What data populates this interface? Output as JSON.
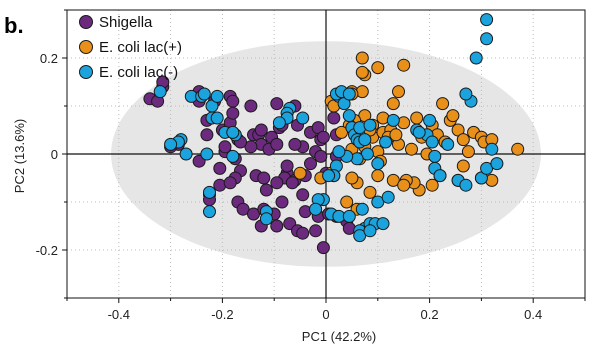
{
  "chart_data": {
    "type": "scatter",
    "panel_label": "b.",
    "title": "",
    "xlabel": "PC1 (42.2%)",
    "ylabel": "PC2 (13.6%)",
    "xlim": [
      -0.5,
      0.5
    ],
    "ylim": [
      -0.3,
      0.3
    ],
    "x_ticks": [
      -0.4,
      -0.2,
      0,
      0.2,
      0.4
    ],
    "x_tick_labels": [
      "-0.4",
      "-0.2",
      "0",
      "0.2",
      "0.4"
    ],
    "y_ticks": [
      0.2,
      0,
      -0.2
    ],
    "y_tick_labels": [
      "0.2",
      "0",
      "-0.2"
    ],
    "grid": true,
    "legend_position": "top-left",
    "ellipse": {
      "cx": 0.0,
      "cy": 0.0,
      "rx": 0.415,
      "ry": 0.235,
      "color": "#e6e6e6"
    },
    "series": [
      {
        "name": "Shigella",
        "color": "#6b2a7e",
        "points": [
          [
            -0.34,
            0.115
          ],
          [
            -0.325,
            0.11
          ],
          [
            -0.315,
            0.14
          ],
          [
            -0.315,
            0.15
          ],
          [
            -0.245,
            0.11
          ],
          [
            -0.245,
            0.13
          ],
          [
            -0.23,
            0.07
          ],
          [
            -0.23,
            0.04
          ],
          [
            -0.215,
            0.11
          ],
          [
            -0.2,
            0.05
          ],
          [
            -0.185,
            0.12
          ],
          [
            -0.18,
            0.11
          ],
          [
            -0.185,
            0.065
          ],
          [
            -0.17,
            0.03
          ],
          [
            -0.14,
            0.04
          ],
          [
            -0.145,
            0.1
          ],
          [
            -0.13,
            0.04
          ],
          [
            -0.125,
            0.05
          ],
          [
            -0.105,
            0.035
          ],
          [
            -0.095,
            0.105
          ],
          [
            -0.09,
            0.055
          ],
          [
            -0.085,
            0.06
          ],
          [
            -0.03,
            0.045
          ],
          [
            -0.015,
            0.055
          ],
          [
            -0.01,
            0.03
          ],
          [
            -0.005,
            0.035
          ],
          [
            0.02,
            0.04
          ],
          [
            -0.045,
            0.015
          ],
          [
            -0.02,
            0.005
          ],
          [
            -0.01,
            -0.005
          ],
          [
            0.02,
            -0.005
          ],
          [
            -0.03,
            -0.02
          ],
          [
            0.0,
            -0.04
          ],
          [
            0.015,
            -0.045
          ],
          [
            -0.075,
            -0.04
          ],
          [
            -0.08,
            -0.05
          ],
          [
            -0.06,
            -0.055
          ],
          [
            -0.04,
            -0.045
          ],
          [
            -0.135,
            -0.045
          ],
          [
            -0.12,
            -0.05
          ],
          [
            -0.165,
            -0.035
          ],
          [
            -0.175,
            -0.05
          ],
          [
            -0.205,
            -0.065
          ],
          [
            -0.225,
            -0.085
          ],
          [
            -0.225,
            -0.095
          ],
          [
            -0.17,
            -0.1
          ],
          [
            -0.16,
            -0.115
          ],
          [
            -0.14,
            -0.125
          ],
          [
            -0.12,
            -0.115
          ],
          [
            -0.1,
            -0.125
          ],
          [
            -0.125,
            -0.15
          ],
          [
            -0.095,
            -0.15
          ],
          [
            -0.07,
            -0.145
          ],
          [
            -0.055,
            -0.16
          ],
          [
            -0.045,
            -0.165
          ],
          [
            -0.04,
            -0.12
          ],
          [
            -0.02,
            -0.115
          ],
          [
            -0.015,
            -0.13
          ],
          [
            0.005,
            -0.125
          ],
          [
            0.02,
            -0.13
          ],
          [
            0.04,
            -0.14
          ],
          [
            0.045,
            -0.155
          ],
          [
            -0.02,
            -0.16
          ],
          [
            -0.005,
            -0.195
          ],
          [
            -0.125,
            0.02
          ],
          [
            -0.11,
            0.01
          ],
          [
            -0.175,
            -0.01
          ],
          [
            -0.245,
            -0.015
          ],
          [
            -0.195,
            0.005
          ],
          [
            -0.285,
            0.02
          ],
          [
            -0.3,
            0.015
          ],
          [
            -0.06,
            0.02
          ],
          [
            -0.115,
            -0.075
          ],
          [
            -0.085,
            -0.1
          ],
          [
            -0.045,
            -0.085
          ],
          [
            -0.06,
            0.1
          ],
          [
            -0.095,
            0.02
          ],
          [
            0.015,
            0.075
          ],
          [
            -0.195,
            0.015
          ],
          [
            -0.145,
            0.015
          ],
          [
            -0.205,
            -0.03
          ],
          [
            -0.18,
            0.085
          ],
          [
            -0.165,
            0.025
          ],
          [
            -0.075,
            -0.025
          ],
          [
            -0.095,
            -0.06
          ],
          [
            -0.185,
            -0.06
          ],
          [
            -0.055,
            0.06
          ],
          [
            -0.065,
            -0.06
          ]
        ]
      },
      {
        "name": "E. coli lac(+)",
        "color": "#e8901a",
        "points": [
          [
            0.01,
            0.11
          ],
          [
            0.015,
            0.1
          ],
          [
            0.035,
            0.115
          ],
          [
            0.05,
            0.13
          ],
          [
            0.07,
            0.13
          ],
          [
            0.07,
            0.2
          ],
          [
            0.075,
            0.165
          ],
          [
            0.1,
            0.18
          ],
          [
            0.15,
            0.185
          ],
          [
            0.14,
            0.13
          ],
          [
            0.13,
            0.105
          ],
          [
            0.11,
            0.075
          ],
          [
            0.09,
            0.06
          ],
          [
            0.075,
            0.08
          ],
          [
            0.055,
            0.07
          ],
          [
            0.045,
            0.06
          ],
          [
            0.03,
            0.045
          ],
          [
            0.05,
            0.01
          ],
          [
            0.065,
            -0.01
          ],
          [
            0.075,
            0.015
          ],
          [
            0.09,
            0.035
          ],
          [
            0.1,
            0.005
          ],
          [
            0.105,
            -0.015
          ],
          [
            0.11,
            0.045
          ],
          [
            0.125,
            0.05
          ],
          [
            0.14,
            0.02
          ],
          [
            0.15,
            0.065
          ],
          [
            0.165,
            0.01
          ],
          [
            0.175,
            0.075
          ],
          [
            0.185,
            0.035
          ],
          [
            0.195,
            0.0
          ],
          [
            0.205,
            0.06
          ],
          [
            0.215,
            0.04
          ],
          [
            0.23,
            0.025
          ],
          [
            0.24,
            0.07
          ],
          [
            0.245,
            0.08
          ],
          [
            0.255,
            0.05
          ],
          [
            0.265,
            0.03
          ],
          [
            0.275,
            0.005
          ],
          [
            0.285,
            0.045
          ],
          [
            0.3,
            0.035
          ],
          [
            0.305,
            0.025
          ],
          [
            0.32,
            0.03
          ],
          [
            0.37,
            0.01
          ],
          [
            0.265,
            -0.025
          ],
          [
            0.255,
            -0.055
          ],
          [
            0.22,
            -0.045
          ],
          [
            0.205,
            -0.065
          ],
          [
            0.18,
            -0.075
          ],
          [
            0.17,
            -0.06
          ],
          [
            0.155,
            -0.055
          ],
          [
            0.13,
            -0.055
          ],
          [
            0.1,
            -0.045
          ],
          [
            0.085,
            -0.08
          ],
          [
            0.06,
            -0.06
          ],
          [
            0.05,
            -0.05
          ],
          [
            -0.01,
            -0.05
          ],
          [
            0.01,
            -0.04
          ],
          [
            -0.05,
            -0.04
          ],
          [
            0.3,
            -0.05
          ],
          [
            0.32,
            -0.055
          ],
          [
            0.15,
            -0.065
          ],
          [
            0.04,
            -0.1
          ],
          [
            0.06,
            -0.115
          ],
          [
            0.085,
            0.05
          ],
          [
            0.12,
            0.035
          ],
          [
            0.05,
            0.125
          ],
          [
            0.07,
            0.17
          ],
          [
            0.135,
            0.04
          ],
          [
            0.225,
            0.105
          ]
        ]
      },
      {
        "name": "E. coli lac(-)",
        "color": "#1ba3dd",
        "points": [
          [
            -0.32,
            0.13
          ],
          [
            -0.26,
            0.12
          ],
          [
            -0.24,
            0.12
          ],
          [
            -0.235,
            0.125
          ],
          [
            -0.22,
            0.1
          ],
          [
            -0.22,
            0.075
          ],
          [
            -0.21,
            0.12
          ],
          [
            -0.28,
            0.03
          ],
          [
            -0.285,
            0.025
          ],
          [
            -0.3,
            0.02
          ],
          [
            -0.27,
            0.0
          ],
          [
            -0.23,
            0.0
          ],
          [
            -0.18,
            -0.005
          ],
          [
            -0.195,
            0.045
          ],
          [
            -0.21,
            0.075
          ],
          [
            -0.175,
            0.04
          ],
          [
            -0.18,
            0.045
          ],
          [
            -0.07,
            0.095
          ],
          [
            -0.075,
            0.085
          ],
          [
            -0.075,
            0.075
          ],
          [
            -0.09,
            0.065
          ],
          [
            -0.045,
            0.075
          ],
          [
            0.025,
            0.12
          ],
          [
            0.02,
            0.125
          ],
          [
            0.035,
            0.105
          ],
          [
            0.03,
            0.13
          ],
          [
            0.045,
            0.125
          ],
          [
            0.045,
            0.08
          ],
          [
            0.05,
            0.055
          ],
          [
            0.055,
            0.04
          ],
          [
            0.06,
            0.03
          ],
          [
            0.065,
            0.025
          ],
          [
            0.075,
            0.03
          ],
          [
            0.08,
            0.0
          ],
          [
            0.06,
            -0.01
          ],
          [
            0.04,
            -0.005
          ],
          [
            0.025,
            0.005
          ],
          [
            0.02,
            -0.025
          ],
          [
            0.015,
            -0.045
          ],
          [
            0.005,
            -0.045
          ],
          [
            -0.005,
            -0.095
          ],
          [
            -0.015,
            -0.095
          ],
          [
            -0.02,
            -0.115
          ],
          [
            0.01,
            -0.125
          ],
          [
            0.025,
            -0.13
          ],
          [
            0.045,
            -0.13
          ],
          [
            0.07,
            -0.115
          ],
          [
            0.075,
            -0.155
          ],
          [
            0.065,
            -0.16
          ],
          [
            0.065,
            -0.17
          ],
          [
            0.085,
            -0.145
          ],
          [
            0.095,
            -0.145
          ],
          [
            0.085,
            -0.16
          ],
          [
            0.11,
            -0.145
          ],
          [
            -0.115,
            -0.12
          ],
          [
            -0.115,
            -0.135
          ],
          [
            -0.225,
            -0.08
          ],
          [
            -0.225,
            -0.12
          ],
          [
            0.115,
            0.025
          ],
          [
            0.13,
            0.07
          ],
          [
            0.175,
            0.05
          ],
          [
            0.195,
            0.04
          ],
          [
            0.205,
            0.025
          ],
          [
            0.21,
            -0.005
          ],
          [
            0.235,
            0.02
          ],
          [
            0.21,
            -0.03
          ],
          [
            0.22,
            -0.045
          ],
          [
            0.255,
            -0.055
          ],
          [
            0.27,
            -0.065
          ],
          [
            0.3,
            -0.05
          ],
          [
            0.31,
            -0.03
          ],
          [
            0.33,
            -0.02
          ],
          [
            0.28,
            0.11
          ],
          [
            0.29,
            0.2
          ],
          [
            0.31,
            0.28
          ],
          [
            0.31,
            0.24
          ],
          [
            0.27,
            0.125
          ],
          [
            0.2,
            0.07
          ],
          [
            0.18,
            0.045
          ],
          [
            0.32,
            0.01
          ],
          [
            0.065,
            0.055
          ],
          [
            0.085,
            0.06
          ],
          [
            0.1,
            -0.02
          ],
          [
            0.1,
            -0.1
          ],
          [
            0.12,
            -0.09
          ]
        ]
      }
    ]
  }
}
